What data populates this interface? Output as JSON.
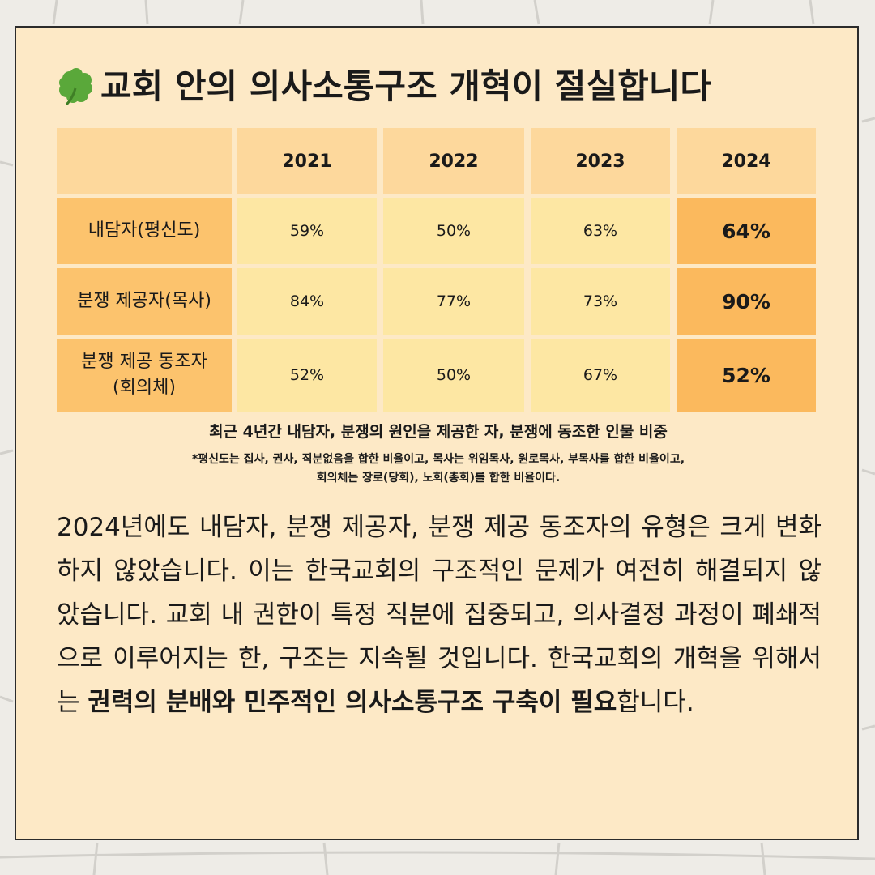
{
  "title": "교회 안의 의사소통구조 개혁이 절실합니다",
  "icon": "four-leaf-clover-icon",
  "colors": {
    "card_bg": "#fde9c6",
    "header_bg": "#fdd89c",
    "row_label_bg": "#fcc36d",
    "value_bg": "#fde7a3",
    "highlight_bg": "#fbb95d"
  },
  "table": {
    "columns": [
      "",
      "2021",
      "2022",
      "2023",
      "2024"
    ],
    "rows": [
      {
        "label": "내담자(평신도)",
        "values": [
          "59%",
          "50%",
          "63%",
          "64%"
        ]
      },
      {
        "label": "분쟁 제공자(목사)",
        "values": [
          "84%",
          "77%",
          "73%",
          "90%"
        ]
      },
      {
        "label": "분쟁 제공 동조자\n(회의체)",
        "values": [
          "52%",
          "50%",
          "67%",
          "52%"
        ]
      }
    ]
  },
  "caption": "최근 4년간 내담자, 분쟁의 원인을 제공한 자, 분쟁에 동조한 인물 비중",
  "footnote": {
    "line1": "*평신도는 집사, 권사, 직분없음을 합한 비율이고, 목사는 위임목사, 원로목사, 부목사를 합한 비율이고,",
    "line2": "회의체는 장로(당회), 노회(총회)를 합한 비율이다."
  },
  "body": {
    "text": "2024년에도 내담자, 분쟁 제공자, 분쟁 제공 동조자의 유형은 크게 변화하지 않았습니다. 이는 한국교회의 구조적인 문제가 여전히 해결되지 않았습니다. 교회 내 권한이 특정 직분에 집중되고, 의사결정 과정이 폐쇄적으로 이루어지는 한, 구조는 지속될 것입니다. 한국교회의 개혁을 위해서는 ",
    "bold": "권력의 분배와 민주적인 의사소통구조 구축이 필요",
    "end": "합니다."
  }
}
